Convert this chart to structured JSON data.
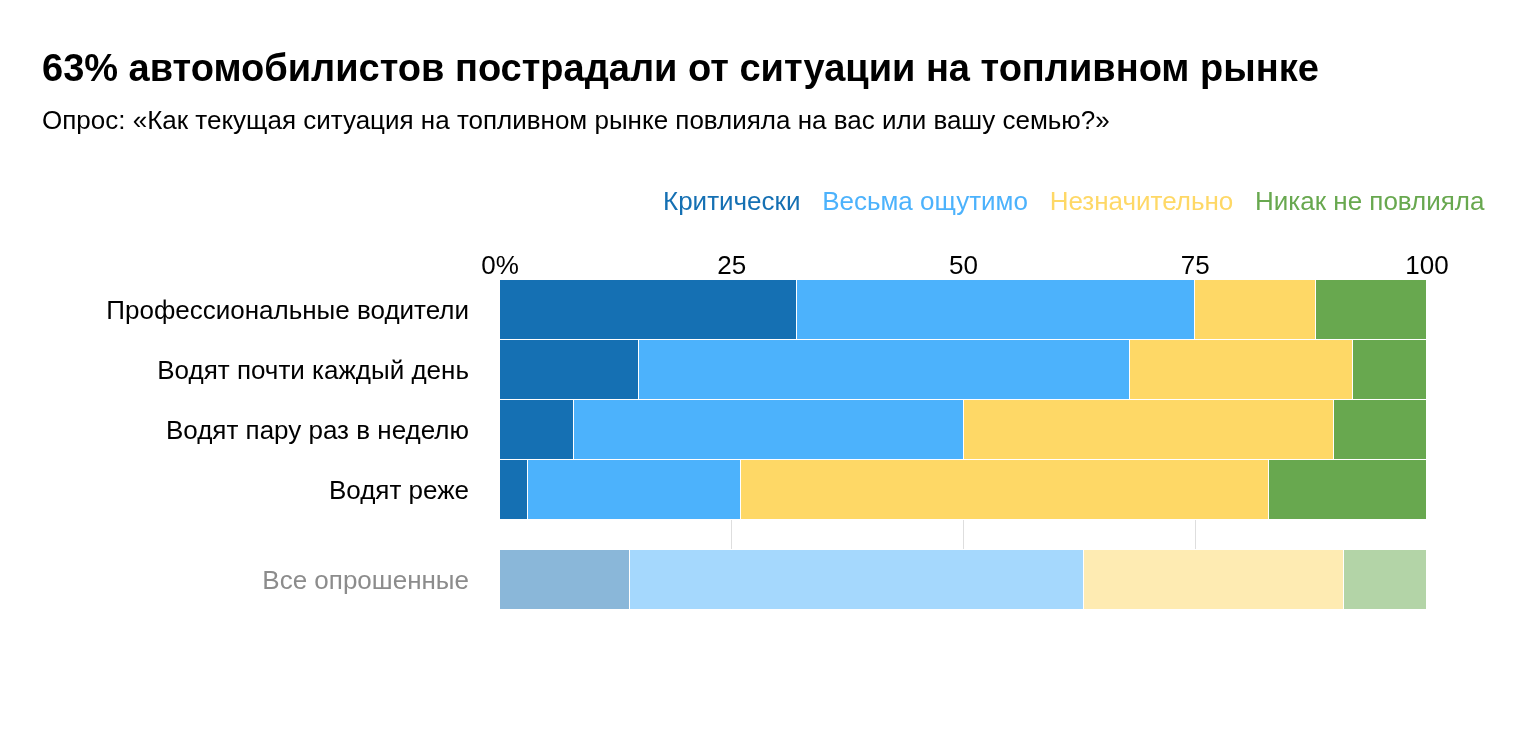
{
  "chart_data": {
    "type": "bar",
    "orientation": "horizontal",
    "stacked": true,
    "title": "63% автомобилистов пострадали от ситуации на топливном рынке",
    "subtitle": "Опрос: «Как текущая ситуация на топливном рынке повлияла на вас или вашу семью?»",
    "categories": [
      "Профессиональные водители",
      "Водят почти каждый день",
      "Водят пару раз в неделю",
      "Водят реже",
      "Все опрошенные"
    ],
    "series": [
      {
        "name": "Критически",
        "color": "#1570b3",
        "colors": [
          "#1570b3",
          "#1570b3",
          "#1570b3",
          "#1570b3",
          "#8ab7d9"
        ],
        "values": [
          32,
          15,
          8,
          3,
          14
        ]
      },
      {
        "name": "Весьма ощутимо",
        "color": "#4cb2fc",
        "colors": [
          "#4cb2fc",
          "#4cb2fc",
          "#4cb2fc",
          "#4cb2fc",
          "#a5d8fd"
        ],
        "values": [
          43,
          53,
          42,
          23,
          49
        ]
      },
      {
        "name": "Незначительно",
        "color": "#fed866",
        "colors": [
          "#fed866",
          "#fed866",
          "#fed866",
          "#fed866",
          "#feebb2"
        ],
        "values": [
          13,
          24,
          40,
          57,
          28
        ]
      },
      {
        "name": "Никак не повлияла",
        "color": "#68a84f",
        "colors": [
          "#68a84f",
          "#68a84f",
          "#68a84f",
          "#68a84f",
          "#b3d4a7"
        ],
        "values": [
          12,
          8,
          10,
          17,
          9
        ]
      }
    ],
    "xlim": [
      0,
      100
    ],
    "xticks": [
      {
        "value": 0,
        "label": "0%"
      },
      25,
      50,
      75,
      100
    ],
    "grid": "x",
    "legend": "top right"
  }
}
